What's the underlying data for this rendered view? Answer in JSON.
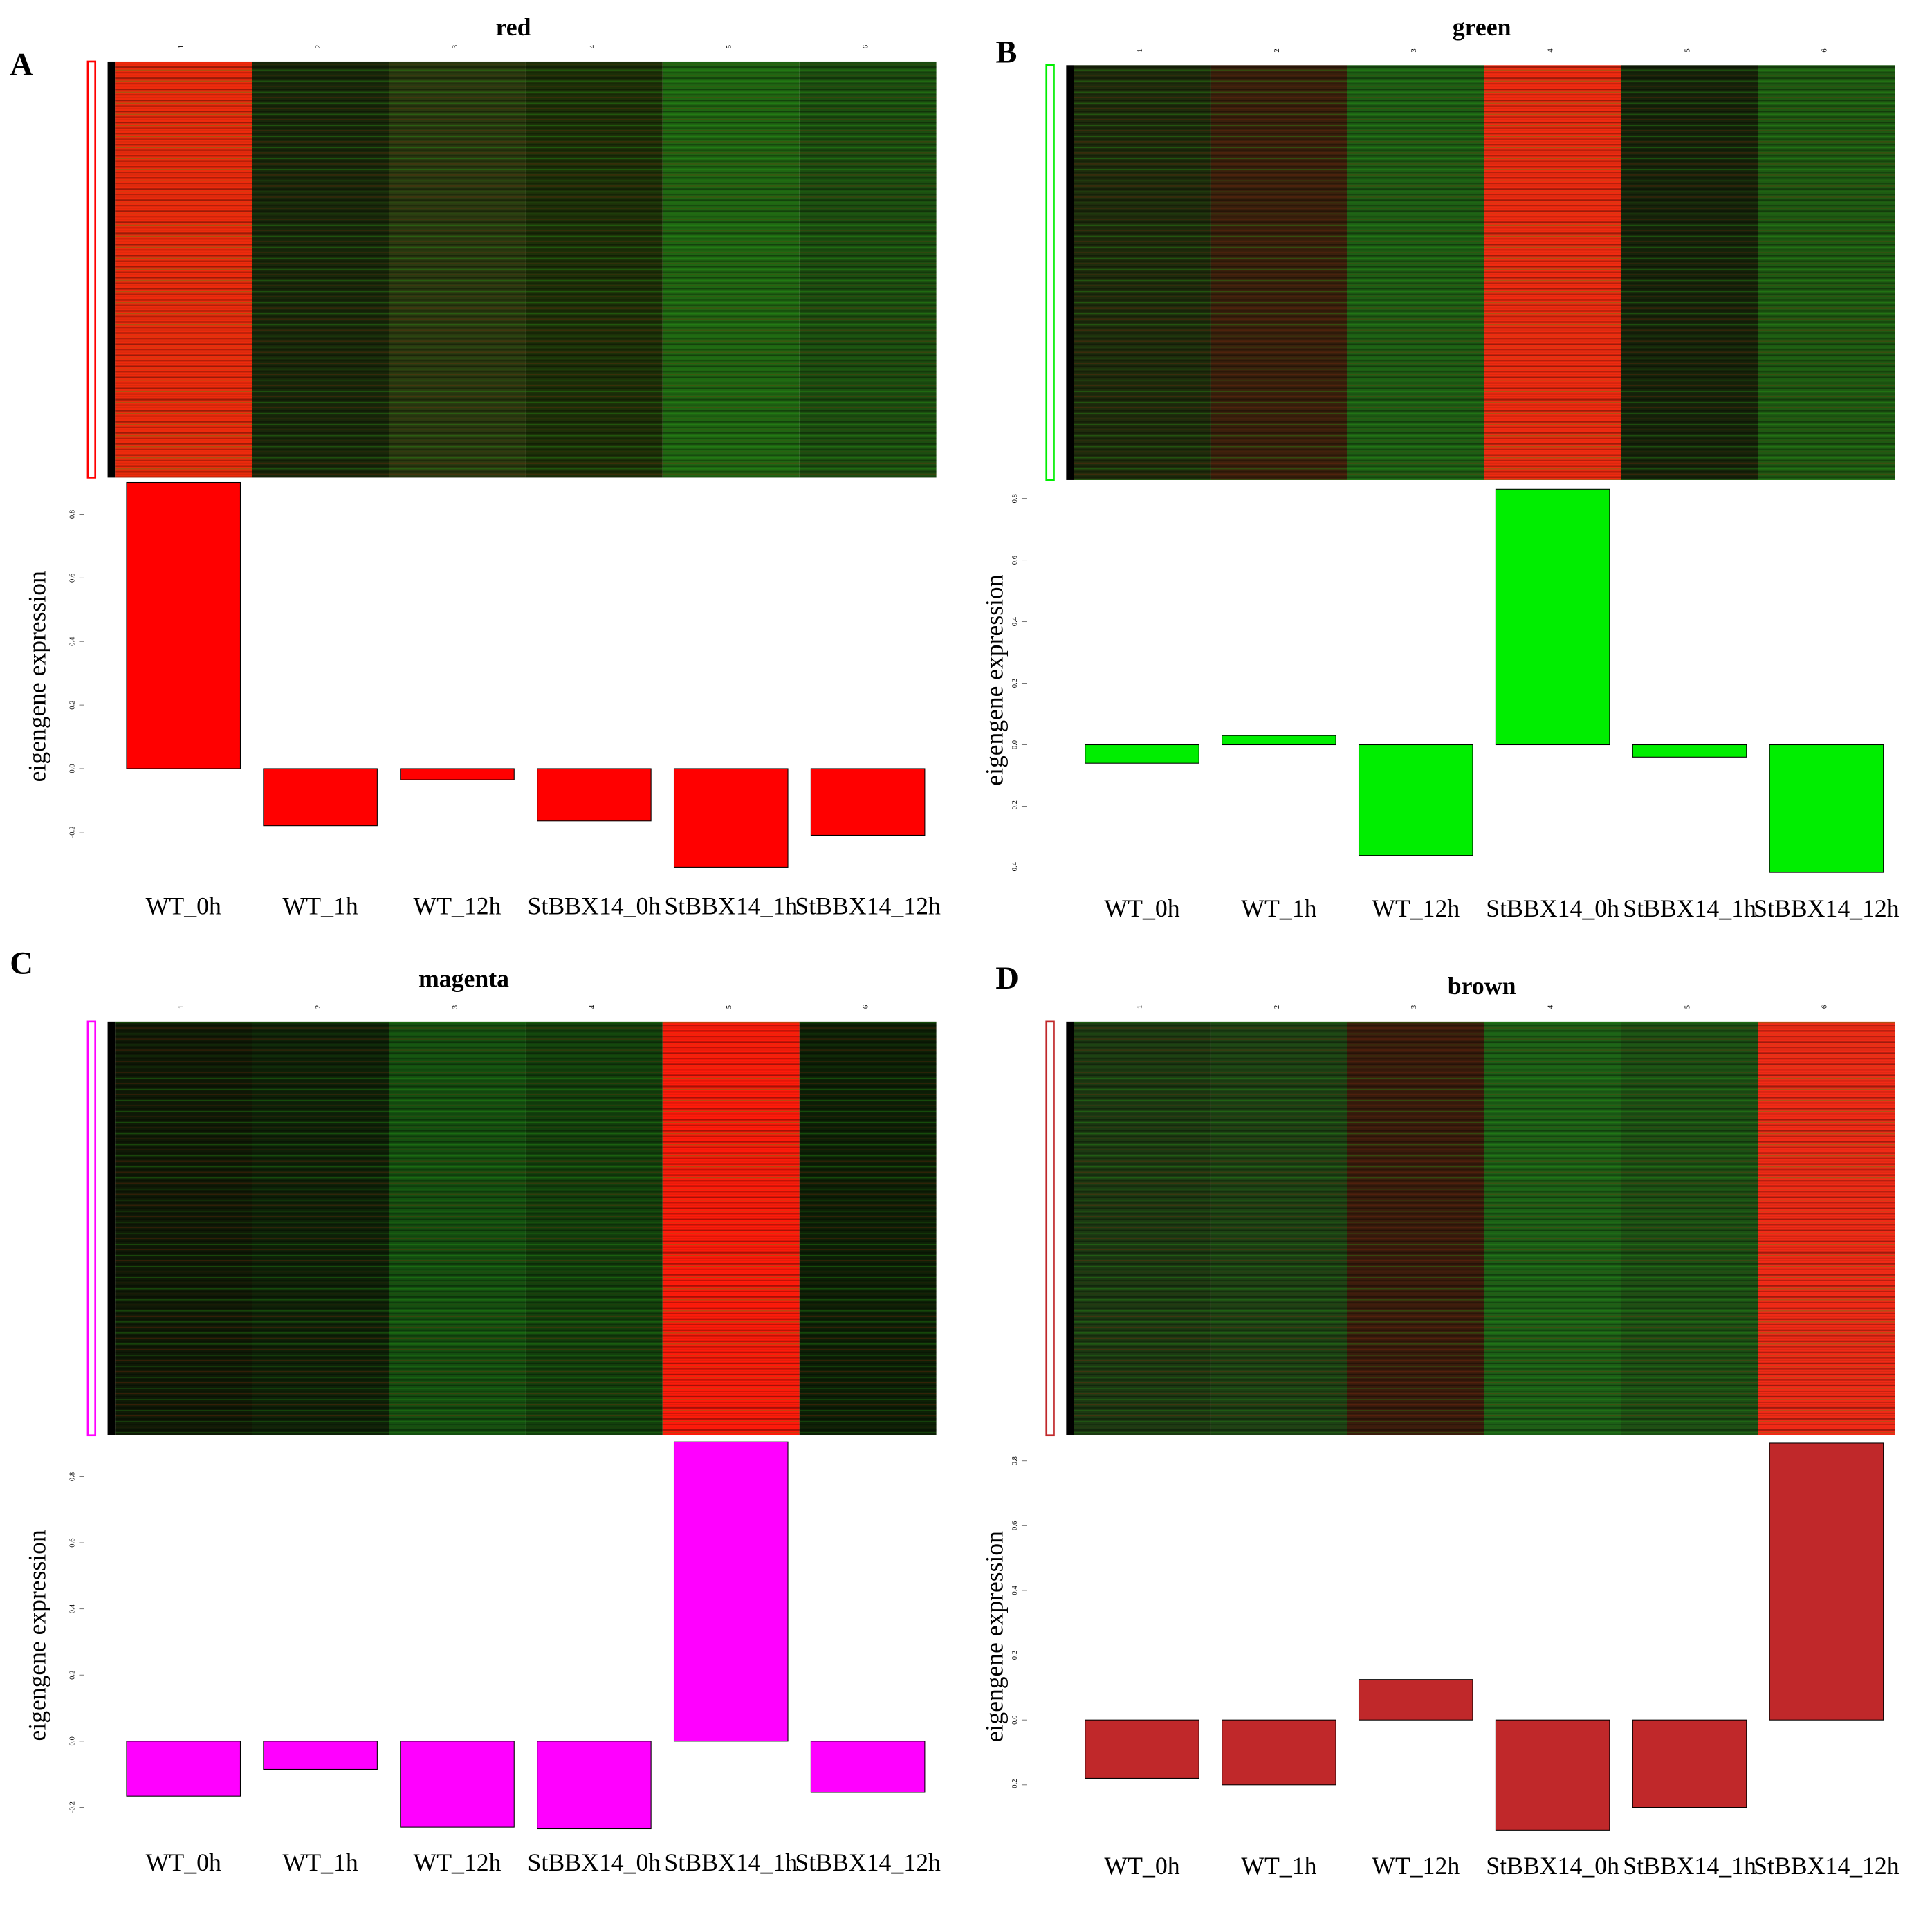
{
  "chart_data": [
    {
      "type": "bar",
      "panel": "A",
      "title": "red",
      "ylabel": "eigengene expression",
      "categories": [
        "WT_0h",
        "WT_1h",
        "WT_12h",
        "StBBX14_0h",
        "StBBX14_1h",
        "StBBX14_12h"
      ],
      "values": [
        0.9,
        -0.18,
        -0.035,
        -0.165,
        -0.31,
        -0.21
      ],
      "color": "#ff0000",
      "ylim": [
        -0.32,
        0.9
      ],
      "yticks": [
        -0.2,
        {
          "value": 0,
          "label": "0.0"
        },
        0.2,
        0.4,
        0.6,
        0.8
      ],
      "heatmap": {
        "columns": [
          "1",
          "2",
          "3",
          "4",
          "5",
          "6"
        ],
        "colors": [
          "#ee2a0c",
          "#18280a",
          "#2a3a10",
          "#1c3008",
          "#1f6612",
          "#1b4e10"
        ]
      }
    },
    {
      "type": "bar",
      "panel": "B",
      "title": "green",
      "ylabel": "eigengene expression",
      "categories": [
        "WT_0h",
        "WT_1h",
        "WT_12h",
        "StBBX14_0h",
        "StBBX14_1h",
        "StBBX14_12h"
      ],
      "values": [
        -0.06,
        0.03,
        -0.36,
        0.83,
        -0.04,
        -0.415
      ],
      "color": "#00ee00",
      "ylim": [
        -0.42,
        0.84
      ],
      "yticks": [
        -0.4,
        -0.2,
        {
          "value": 0,
          "label": "0.0"
        },
        0.2,
        0.4,
        0.6,
        0.8
      ],
      "heatmap": {
        "columns": [
          "1",
          "2",
          "3",
          "4",
          "5",
          "6"
        ],
        "colors": [
          "#1e2c0c",
          "#3a200c",
          "#1d5e14",
          "#f02a10",
          "#16240a",
          "#1e5a12"
        ]
      }
    },
    {
      "type": "bar",
      "panel": "C",
      "title": "magenta",
      "ylabel": "eigengene expression",
      "categories": [
        "WT_0h",
        "WT_1h",
        "WT_12h",
        "StBBX14_0h",
        "StBBX14_1h",
        "StBBX14_12h"
      ],
      "values": [
        -0.166,
        -0.085,
        -0.26,
        -0.265,
        0.905,
        -0.155
      ],
      "color": "#ff00ff",
      "ylim": [
        -0.27,
        0.91
      ],
      "yticks": [
        -0.2,
        {
          "value": 0,
          "label": "0.0"
        },
        0.2,
        0.4,
        0.6,
        0.8
      ],
      "heatmap": {
        "columns": [
          "1",
          "2",
          "3",
          "4",
          "5",
          "6"
        ],
        "colors": [
          "#0f1a06",
          "#0e2208",
          "#145010",
          "#12400c",
          "#ff1a0a",
          "#0d2006"
        ]
      }
    },
    {
      "type": "bar",
      "panel": "D",
      "title": "brown",
      "ylabel": "eigengene expression",
      "categories": [
        "WT_0h",
        "WT_1h",
        "WT_12h",
        "StBBX14_0h",
        "StBBX14_1h",
        "StBBX14_12h"
      ],
      "values": [
        -0.18,
        -0.2,
        0.125,
        -0.34,
        -0.27,
        0.855
      ],
      "color": "#c0282a",
      "ylim": [
        -0.345,
        0.86
      ],
      "yticks": [
        -0.2,
        {
          "value": 0,
          "label": "0.0"
        },
        0.2,
        0.4,
        0.6,
        0.8
      ],
      "heatmap": {
        "columns": [
          "1",
          "2",
          "3",
          "4",
          "5",
          "6"
        ],
        "colors": [
          "#1c3a12",
          "#1d4214",
          "#3a1c0c",
          "#1c6016",
          "#1c5014",
          "#f22a16"
        ]
      }
    }
  ]
}
